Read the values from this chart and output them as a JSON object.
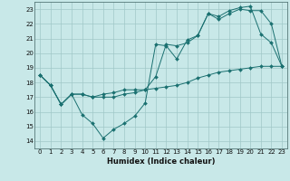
{
  "xlabel": "Humidex (Indice chaleur)",
  "xlim": [
    -0.5,
    23.5
  ],
  "ylim": [
    13.5,
    23.5
  ],
  "xticks": [
    0,
    1,
    2,
    3,
    4,
    5,
    6,
    7,
    8,
    9,
    10,
    11,
    12,
    13,
    14,
    15,
    16,
    17,
    18,
    19,
    20,
    21,
    22,
    23
  ],
  "yticks": [
    14,
    15,
    16,
    17,
    18,
    19,
    20,
    21,
    22,
    23
  ],
  "bg_color": "#c8e8e8",
  "grid_color": "#a0c8c8",
  "line_color": "#1a7070",
  "line1_x": [
    0,
    1,
    2,
    3,
    4,
    5,
    6,
    7,
    8,
    9,
    10,
    11,
    12,
    13,
    14,
    15,
    16,
    17,
    18,
    19,
    20,
    21,
    22,
    23
  ],
  "line1_y": [
    18.5,
    17.8,
    16.5,
    17.2,
    15.8,
    15.2,
    14.2,
    14.8,
    15.2,
    15.7,
    16.6,
    20.6,
    20.5,
    19.6,
    20.9,
    21.2,
    22.7,
    22.5,
    22.9,
    23.1,
    23.2,
    21.3,
    20.7,
    19.1
  ],
  "line2_x": [
    0,
    1,
    2,
    3,
    4,
    5,
    6,
    7,
    8,
    9,
    10,
    11,
    12,
    13,
    14,
    15,
    16,
    17,
    18,
    19,
    20,
    21,
    22,
    23
  ],
  "line2_y": [
    18.5,
    17.8,
    16.5,
    17.2,
    17.2,
    17.0,
    17.2,
    17.3,
    17.5,
    17.5,
    17.5,
    18.4,
    20.6,
    20.5,
    20.7,
    21.2,
    22.7,
    22.3,
    22.7,
    23.0,
    22.9,
    22.9,
    22.0,
    19.1
  ],
  "line3_x": [
    0,
    1,
    2,
    3,
    4,
    5,
    6,
    7,
    8,
    9,
    10,
    11,
    12,
    13,
    14,
    15,
    16,
    17,
    18,
    19,
    20,
    21,
    22,
    23
  ],
  "line3_y": [
    18.5,
    17.8,
    16.5,
    17.2,
    17.2,
    17.0,
    17.0,
    17.0,
    17.2,
    17.3,
    17.5,
    17.6,
    17.7,
    17.8,
    18.0,
    18.3,
    18.5,
    18.7,
    18.8,
    18.9,
    19.0,
    19.1,
    19.1,
    19.1
  ],
  "tick_fontsize": 5,
  "xlabel_fontsize": 6
}
